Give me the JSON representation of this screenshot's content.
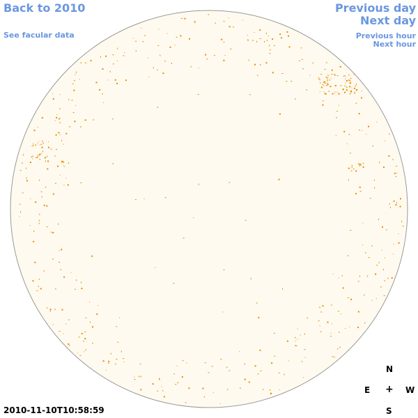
{
  "nav": {
    "back": "Back to 2010",
    "facular": "See facular data",
    "previous_day": "Previous day",
    "next_day": "Next day",
    "previous_hour": "Previous hour",
    "next_hour": "Next hour"
  },
  "compass": {
    "n": "N",
    "e": "E",
    "center": "+",
    "w": "W",
    "s": "S"
  },
  "timestamp": "2010-11-10T10:58:59",
  "colors": {
    "link": "#6a97e0",
    "disk_fill": "#fefaef",
    "disk_edge": "#999999",
    "spot": "#e98a00"
  }
}
